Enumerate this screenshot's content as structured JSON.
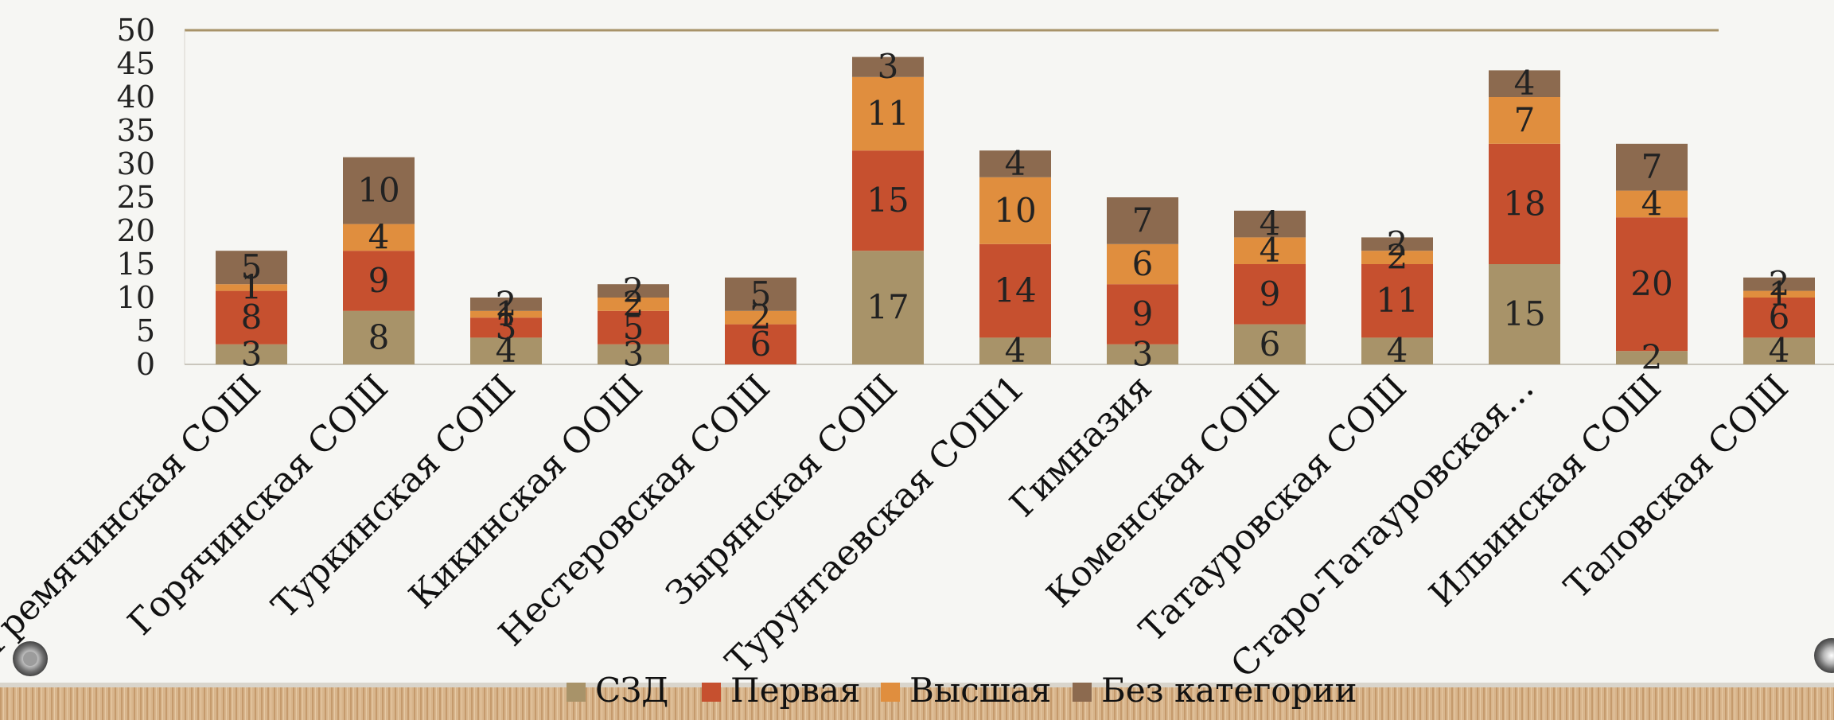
{
  "chart_data": {
    "type": "bar",
    "stacked": true,
    "categories": [
      "Гремячинская СОШ",
      "Горячинская СОШ",
      "Туркинская СОШ",
      "Кикинская ООШ",
      "Нестеровская СОШ",
      "Зырянская СОШ",
      "Турунтаевская СОШ1",
      "Гимназия",
      "Коменская СОШ",
      "Татауровская СОШ",
      "Старо-Татауровская…",
      "Ильинская СОШ",
      "Таловская СОШ"
    ],
    "series": [
      {
        "name": "СЗД",
        "color": "#a89369",
        "values": [
          3,
          8,
          4,
          3,
          0,
          17,
          4,
          3,
          6,
          4,
          15,
          2,
          4
        ]
      },
      {
        "name": "Первая",
        "color": "#c6502f",
        "values": [
          8,
          9,
          3,
          5,
          6,
          15,
          14,
          9,
          9,
          11,
          18,
          20,
          6
        ]
      },
      {
        "name": "Высшая",
        "color": "#e08e3e",
        "values": [
          1,
          4,
          1,
          2,
          2,
          11,
          10,
          6,
          4,
          2,
          7,
          4,
          1
        ]
      },
      {
        "name": "Без категории",
        "color": "#8c6a4f",
        "values": [
          5,
          10,
          2,
          2,
          5,
          3,
          4,
          7,
          4,
          2,
          4,
          7,
          2
        ]
      }
    ],
    "ylim": [
      0,
      50
    ],
    "yticks": [
      0,
      5,
      10,
      15,
      20,
      25,
      30,
      35,
      40,
      45,
      50
    ],
    "title": "",
    "xlabel": "",
    "ylabel": "",
    "legend_position": "bottom",
    "grid": false
  },
  "theme": {
    "axis_line_color": "#a89369",
    "text_color": "#222222",
    "frame_color": "#c9a780"
  }
}
